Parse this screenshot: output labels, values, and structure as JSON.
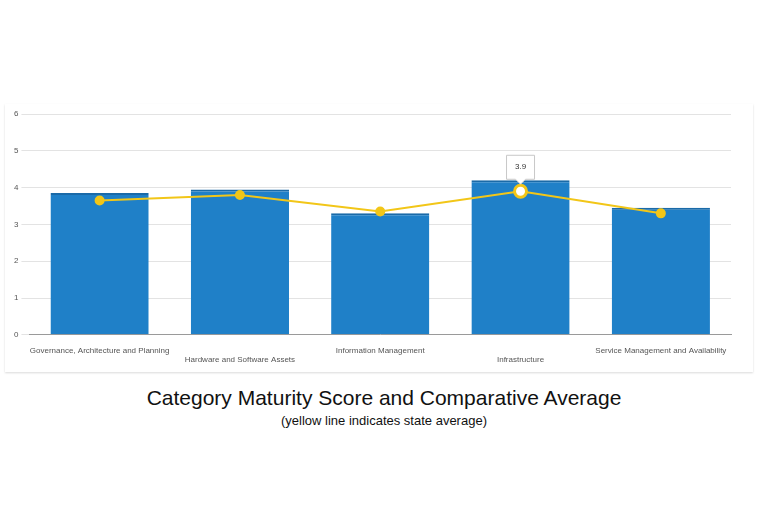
{
  "chart_data": {
    "type": "bar",
    "title": "Category Maturity Score and Comparative Average",
    "subtitle": "(yellow line indicates state average)",
    "categories": [
      "Governance, Architecture and Planning",
      "Hardware and Software Assets",
      "Information Management",
      "Infrastructure",
      "Service Management and Availability"
    ],
    "series": [
      {
        "type": "bar",
        "color": "#1f80c8",
        "values": [
          3.85,
          3.95,
          3.3,
          4.2,
          3.45
        ]
      },
      {
        "type": "line",
        "color": "#f2c618",
        "marker": "circle",
        "values": [
          3.65,
          3.8,
          3.35,
          3.9,
          3.3
        ]
      }
    ],
    "ylim": [
      0,
      6
    ],
    "yticks": [
      0,
      1,
      2,
      3,
      4,
      5,
      6
    ],
    "grid": true,
    "annotations": [
      {
        "text": "3.9",
        "category": "Infrastructure"
      }
    ]
  }
}
